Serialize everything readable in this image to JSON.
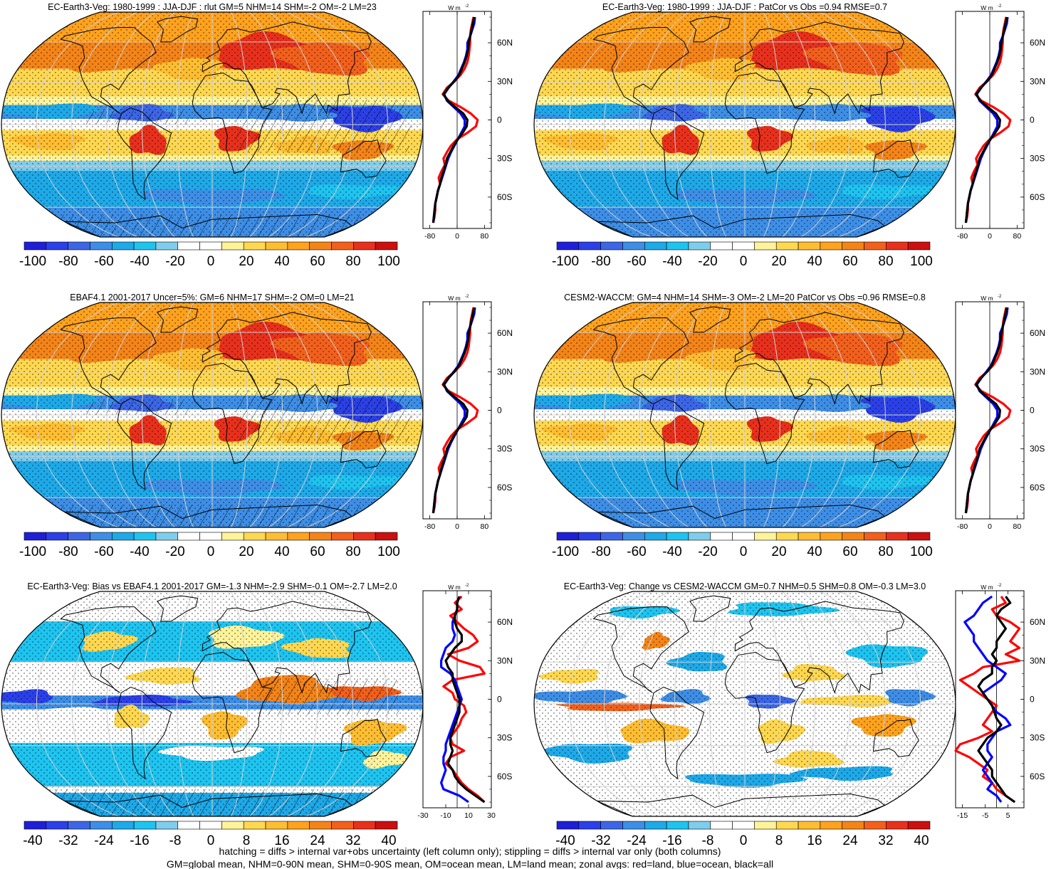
{
  "panels": [
    {
      "title": "EC-Earth3-Veg: 1980-1999 : JJA-DJF : rlut GM=5 NHM=14 SHM=-2 OM=-2 LM=23",
      "colorbar_labels": [
        "-100",
        "-80",
        "-60",
        "-40",
        "-20",
        "0",
        "20",
        "40",
        "60",
        "80",
        "100"
      ],
      "zonal_ticks": [
        "-80",
        "0",
        "80"
      ],
      "zonal_xlim": [
        -100,
        100
      ],
      "hatching": true,
      "field": "clim"
    },
    {
      "title": "EC-Earth3-Veg: 1980-1999 : JJA-DJF : PatCor vs Obs =0.94 RMSE=0.7",
      "colorbar_labels": [
        "-100",
        "-80",
        "-60",
        "-40",
        "-20",
        "0",
        "20",
        "40",
        "60",
        "80",
        "100"
      ],
      "zonal_ticks": [
        "-80",
        "0",
        "80"
      ],
      "zonal_xlim": [
        -100,
        100
      ],
      "hatching": false,
      "field": "clim"
    },
    {
      "title": "EBAF4.1 2001-2017 Uncer=5%: GM=6 NHM=17 SHM=-2 OM=0 LM=21",
      "colorbar_labels": [
        "-100",
        "-80",
        "-60",
        "-40",
        "-20",
        "0",
        "20",
        "40",
        "60",
        "80",
        "100"
      ],
      "zonal_ticks": [
        "-80",
        "0",
        "80"
      ],
      "zonal_xlim": [
        -100,
        100
      ],
      "hatching": true,
      "field": "clim"
    },
    {
      "title": "CESM2-WACCM: GM=4 NHM=14 SHM=-3 OM=-2 LM=20 PatCor vs Obs =0.96 RMSE=0.8",
      "colorbar_labels": [
        "-100",
        "-80",
        "-60",
        "-40",
        "-20",
        "0",
        "20",
        "40",
        "60",
        "80",
        "100"
      ],
      "zonal_ticks": [
        "-80",
        "0",
        "80"
      ],
      "zonal_xlim": [
        -100,
        100
      ],
      "hatching": false,
      "field": "clim"
    },
    {
      "title": "EC-Earth3-Veg: Bias vs EBAF4.1 2001-2017 GM=-1.3 NHM=-2.9 SHM=-0.1 OM=-2.7 LM=2.0",
      "colorbar_labels": [
        "-40",
        "-32",
        "-24",
        "-16",
        "-8",
        "0",
        "8",
        "16",
        "24",
        "32",
        "40"
      ],
      "zonal_ticks": [
        "-30",
        "-10",
        "10",
        "30"
      ],
      "zonal_xlim": [
        -30,
        30
      ],
      "hatching": true,
      "field": "bias"
    },
    {
      "title": "EC-Earth3-Veg: Change vs CESM2-WACCM GM=0.7 NHM=0.5 SHM=0.8 OM=-0.3 LM=3.0",
      "colorbar_labels": [
        "-40",
        "-32",
        "-24",
        "-16",
        "-8",
        "0",
        "8",
        "16",
        "24",
        "32",
        "40"
      ],
      "zonal_ticks": [
        "-15",
        "-5",
        "5"
      ],
      "zonal_xlim": [
        -18,
        12
      ],
      "hatching": false,
      "field": "change"
    }
  ],
  "latitude_labels": [
    "60N",
    "30N",
    "0",
    "30S",
    "60S"
  ],
  "unit_label": "W m",
  "unit_exponent": "-2",
  "colors": {
    "palette": [
      "#1f1fd8",
      "#2b40e8",
      "#3c66e6",
      "#3d8ee6",
      "#1ea9e8",
      "#1ec4f0",
      "#7fcdec",
      "#ffffff",
      "#ffffff",
      "#fff39a",
      "#ffd850",
      "#ffbe32",
      "#ffa21e",
      "#f48418",
      "#f2601c",
      "#e8301c",
      "#cc0f0f"
    ],
    "land": "#ff0000",
    "ocean": "#0000ff",
    "all": "#000000"
  },
  "zonal_legend": {
    "land": "red=land",
    "ocean": "blue=ocean",
    "all": "black=all"
  },
  "footer": {
    "line1": "hatching = diffs > internal var+obs uncertainty (left column only); stippling = diffs > internal var only (both columns)",
    "line2": "GM=global mean, NHM=0-90N mean, SHM=0-90S mean, OM=ocean mean, LM=land mean; zonal avgs: red=land, blue=ocean, black=all"
  },
  "chart_data": [
    {
      "type": "heatmap",
      "projection": "robinson",
      "title": "EC-Earth3-Veg: 1980-1999 : JJA-DJF : rlut GM=5 NHM=14 SHM=-2 OM=-2 LM=23",
      "colorbar": [
        -100,
        -80,
        -60,
        -40,
        -20,
        0,
        20,
        40,
        60,
        80,
        100
      ]
    },
    {
      "type": "heatmap",
      "projection": "robinson",
      "title": "EC-Earth3-Veg: 1980-1999 : JJA-DJF : PatCor vs Obs =0.94 RMSE=0.7",
      "colorbar": [
        -100,
        -80,
        -60,
        -40,
        -20,
        0,
        20,
        40,
        60,
        80,
        100
      ]
    },
    {
      "type": "heatmap",
      "projection": "robinson",
      "title": "EBAF4.1 2001-2017 Uncer=5%: GM=6 NHM=17 SHM=-2 OM=0 LM=21",
      "colorbar": [
        -100,
        -80,
        -60,
        -40,
        -20,
        0,
        20,
        40,
        60,
        80,
        100
      ]
    },
    {
      "type": "heatmap",
      "projection": "robinson",
      "title": "CESM2-WACCM: GM=4 NHM=14 SHM=-3 OM=-2 LM=20 PatCor vs Obs =0.96 RMSE=0.8",
      "colorbar": [
        -100,
        -80,
        -60,
        -40,
        -20,
        0,
        20,
        40,
        60,
        80,
        100
      ]
    },
    {
      "type": "heatmap",
      "projection": "robinson",
      "title": "EC-Earth3-Veg: Bias vs EBAF4.1 2001-2017 GM=-1.3 NHM=-2.9 SHM=-0.1 OM=-2.7 LM=2.0",
      "colorbar": [
        -40,
        -32,
        -24,
        -16,
        -8,
        0,
        8,
        16,
        24,
        32,
        40
      ]
    },
    {
      "type": "heatmap",
      "projection": "robinson",
      "title": "EC-Earth3-Veg: Change vs CESM2-WACCM GM=0.7 NHM=0.5 SHM=0.8 OM=-0.3 LM=3.0",
      "colorbar": [
        -40,
        -32,
        -24,
        -16,
        -8,
        0,
        8,
        16,
        24,
        32,
        40
      ]
    }
  ]
}
